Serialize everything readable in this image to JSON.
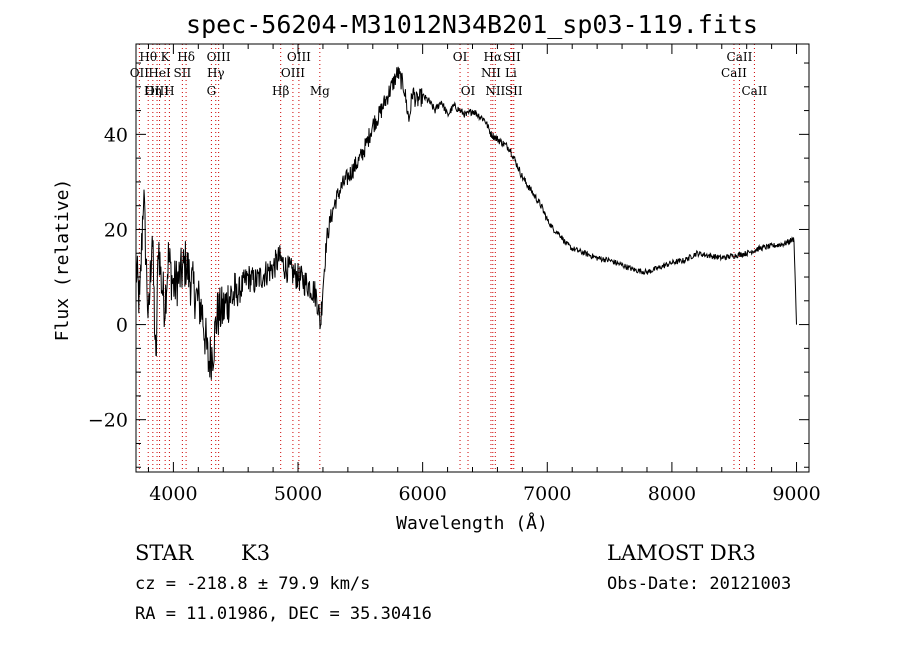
{
  "chart_data": {
    "type": "line",
    "title": "spec-56204-M31012N34B201_sp03-119.fits",
    "xlabel": "Wavelength (Å)",
    "ylabel": "Flux (relative)",
    "xlim": [
      3700,
      9100
    ],
    "ylim": [
      -31,
      59
    ],
    "x_ticks": [
      4000,
      5000,
      6000,
      7000,
      8000,
      9000
    ],
    "y_ticks": [
      -20,
      0,
      20,
      40
    ],
    "spectrum_anchors": [
      [
        3700,
        12
      ],
      [
        3730,
        4
      ],
      [
        3760,
        28
      ],
      [
        3800,
        0
      ],
      [
        3830,
        20
      ],
      [
        3860,
        -10
      ],
      [
        3880,
        18
      ],
      [
        3900,
        10
      ],
      [
        3930,
        4
      ],
      [
        3960,
        14
      ],
      [
        4000,
        8
      ],
      [
        4050,
        10
      ],
      [
        4100,
        13
      ],
      [
        4130,
        10
      ],
      [
        4180,
        6
      ],
      [
        4230,
        3
      ],
      [
        4280,
        -8
      ],
      [
        4320,
        -5
      ],
      [
        4350,
        2
      ],
      [
        4400,
        3
      ],
      [
        4450,
        6
      ],
      [
        4500,
        6
      ],
      [
        4550,
        8
      ],
      [
        4600,
        10
      ],
      [
        4650,
        9
      ],
      [
        4700,
        10
      ],
      [
        4750,
        11
      ],
      [
        4800,
        12
      ],
      [
        4850,
        14
      ],
      [
        4900,
        12
      ],
      [
        4950,
        11
      ],
      [
        5000,
        10
      ],
      [
        5050,
        9
      ],
      [
        5100,
        8
      ],
      [
        5150,
        6
      ],
      [
        5180,
        0
      ],
      [
        5200,
        8
      ],
      [
        5230,
        18
      ],
      [
        5260,
        22
      ],
      [
        5300,
        26
      ],
      [
        5350,
        29
      ],
      [
        5400,
        31
      ],
      [
        5450,
        33
      ],
      [
        5500,
        35
      ],
      [
        5550,
        38
      ],
      [
        5600,
        42
      ],
      [
        5650,
        44
      ],
      [
        5700,
        47
      ],
      [
        5750,
        50
      ],
      [
        5800,
        53
      ],
      [
        5850,
        50
      ],
      [
        5890,
        43
      ],
      [
        5920,
        49
      ],
      [
        5950,
        47
      ],
      [
        6000,
        48
      ],
      [
        6050,
        47
      ],
      [
        6100,
        45
      ],
      [
        6150,
        47
      ],
      [
        6200,
        44
      ],
      [
        6250,
        46
      ],
      [
        6300,
        45
      ],
      [
        6350,
        44
      ],
      [
        6400,
        45
      ],
      [
        6450,
        44
      ],
      [
        6500,
        43
      ],
      [
        6550,
        40
      ],
      [
        6600,
        39
      ],
      [
        6650,
        38
      ],
      [
        6700,
        37
      ],
      [
        6750,
        34
      ],
      [
        6800,
        31
      ],
      [
        6850,
        29
      ],
      [
        6900,
        27
      ],
      [
        6950,
        25
      ],
      [
        7000,
        22
      ],
      [
        7050,
        20
      ],
      [
        7100,
        19
      ],
      [
        7150,
        17
      ],
      [
        7200,
        16
      ],
      [
        7300,
        15
      ],
      [
        7400,
        14
      ],
      [
        7500,
        13.5
      ],
      [
        7600,
        12.5
      ],
      [
        7700,
        11.5
      ],
      [
        7800,
        11
      ],
      [
        7900,
        12
      ],
      [
        8000,
        13
      ],
      [
        8100,
        13.5
      ],
      [
        8200,
        15
      ],
      [
        8300,
        14.5
      ],
      [
        8400,
        14
      ],
      [
        8500,
        14.5
      ],
      [
        8600,
        15
      ],
      [
        8700,
        16
      ],
      [
        8800,
        16.5
      ],
      [
        8900,
        17
      ],
      [
        8980,
        18
      ],
      [
        9000,
        0
      ]
    ],
    "line_markers": [
      {
        "label": "Hθ",
        "x": 3798,
        "row": 1
      },
      {
        "label": "K",
        "x": 3934,
        "row": 1
      },
      {
        "label": "Hδ",
        "x": 4102,
        "row": 1
      },
      {
        "label": "OIII",
        "x": 4363,
        "row": 1
      },
      {
        "label": "OIII",
        "x": 5007,
        "row": 1
      },
      {
        "label": "OI",
        "x": 6300,
        "row": 1
      },
      {
        "label": "Hα",
        "x": 6563,
        "row": 1
      },
      {
        "label": "SII",
        "x": 6716,
        "row": 1
      },
      {
        "label": "CaII",
        "x": 8542,
        "row": 1
      },
      {
        "label": "OII",
        "x": 3727,
        "row": 2
      },
      {
        "label": "HeI",
        "x": 3889,
        "row": 2
      },
      {
        "label": "SII",
        "x": 4072,
        "row": 2
      },
      {
        "label": "Hγ",
        "x": 4340,
        "row": 2
      },
      {
        "label": "OIII",
        "x": 4959,
        "row": 2
      },
      {
        "label": "NII",
        "x": 6548,
        "row": 2
      },
      {
        "label": "Li",
        "x": 6708,
        "row": 2
      },
      {
        "label": "CaII",
        "x": 8498,
        "row": 2
      },
      {
        "label": "OIII",
        "x": 3869,
        "row": 3
      },
      {
        "label": "Hη",
        "x": 3835,
        "row": 3
      },
      {
        "label": "H",
        "x": 3968,
        "row": 3
      },
      {
        "label": "G",
        "x": 4305,
        "row": 3
      },
      {
        "label": "Hβ",
        "x": 4861,
        "row": 3
      },
      {
        "label": "Mg",
        "x": 5175,
        "row": 3
      },
      {
        "label": "OI",
        "x": 6364,
        "row": 3
      },
      {
        "label": "NII",
        "x": 6583,
        "row": 3
      },
      {
        "label": "SII",
        "x": 6731,
        "row": 3
      },
      {
        "label": "CaII",
        "x": 8662,
        "row": 3
      }
    ],
    "marker_color": "#cc0000"
  },
  "footer": {
    "class_label": "STAR",
    "subclass": "K3",
    "survey": "LAMOST DR3",
    "redshift_text": "cz = -218.8 ± 79.9 km/s",
    "obs_date": "Obs-Date: 20121003",
    "coords": "RA =  11.01986, DEC =  35.30416"
  }
}
